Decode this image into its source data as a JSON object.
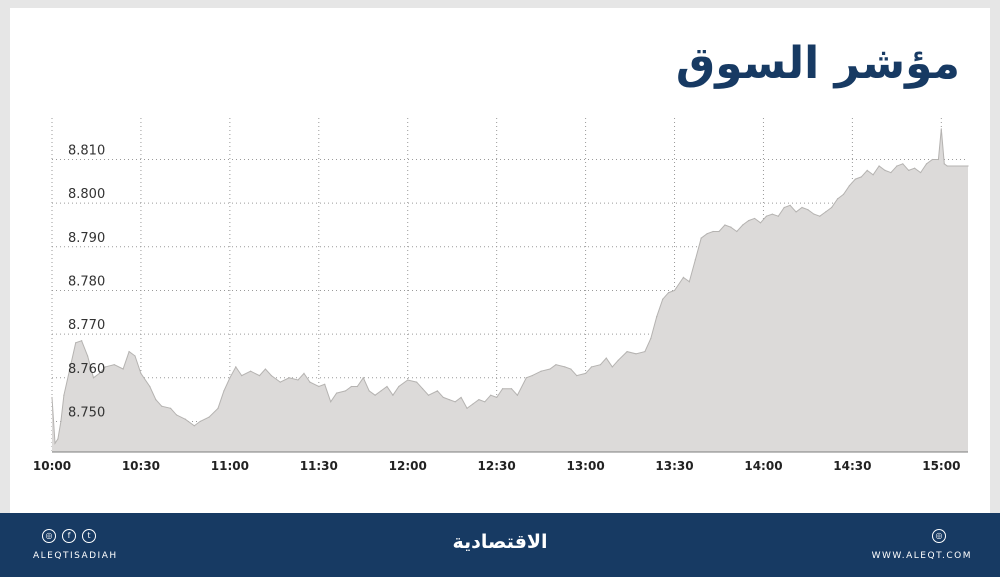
{
  "title": "مؤشر السوق",
  "chart_data": {
    "type": "area",
    "ylim": [
      8.743,
      8.8195
    ],
    "xlim": [
      "10:00",
      "15:09"
    ],
    "x_ticks": [
      "10:00",
      "10:30",
      "11:00",
      "11:30",
      "12:00",
      "12:30",
      "13:00",
      "13:30",
      "14:00",
      "14:30",
      "15:00"
    ],
    "y_ticks": [
      "8.750",
      "8.760",
      "8.770",
      "8.780",
      "8.790",
      "8.800",
      "8.810"
    ],
    "grid": true,
    "series": [
      {
        "color": "#dcdad9",
        "line_color": "#b5b3b1",
        "points": [
          [
            "10:00",
            8.7555
          ],
          [
            "10:01",
            8.745
          ],
          [
            "10:02",
            8.746
          ],
          [
            "10:03",
            8.75
          ],
          [
            "10:04",
            8.756
          ],
          [
            "10:06",
            8.762
          ],
          [
            "10:08",
            8.768
          ],
          [
            "10:10",
            8.7685
          ],
          [
            "10:12",
            8.765
          ],
          [
            "10:14",
            8.76
          ],
          [
            "10:16",
            8.761
          ],
          [
            "10:18",
            8.7625
          ],
          [
            "10:21",
            8.763
          ],
          [
            "10:24",
            8.762
          ],
          [
            "10:26",
            8.766
          ],
          [
            "10:28",
            8.765
          ],
          [
            "10:30",
            8.761
          ],
          [
            "10:33",
            8.758
          ],
          [
            "10:35",
            8.755
          ],
          [
            "10:37",
            8.7535
          ],
          [
            "10:40",
            8.753
          ],
          [
            "10:42",
            8.7515
          ],
          [
            "10:45",
            8.7505
          ],
          [
            "10:48",
            8.749
          ],
          [
            "10:50",
            8.75
          ],
          [
            "10:53",
            8.751
          ],
          [
            "10:56",
            8.753
          ],
          [
            "10:58",
            8.757
          ],
          [
            "11:00",
            8.76
          ],
          [
            "11:02",
            8.7625
          ],
          [
            "11:04",
            8.7605
          ],
          [
            "11:07",
            8.7615
          ],
          [
            "11:10",
            8.7605
          ],
          [
            "11:12",
            8.762
          ],
          [
            "11:14",
            8.7605
          ],
          [
            "11:17",
            8.759
          ],
          [
            "11:20",
            8.76
          ],
          [
            "11:23",
            8.7595
          ],
          [
            "11:25",
            8.761
          ],
          [
            "11:27",
            8.759
          ],
          [
            "11:30",
            8.758
          ],
          [
            "11:32",
            8.7585
          ],
          [
            "11:34",
            8.7545
          ],
          [
            "11:36",
            8.7565
          ],
          [
            "11:39",
            8.757
          ],
          [
            "11:41",
            8.758
          ],
          [
            "11:43",
            8.758
          ],
          [
            "11:45",
            8.76
          ],
          [
            "11:47",
            8.757
          ],
          [
            "11:49",
            8.756
          ],
          [
            "11:51",
            8.757
          ],
          [
            "11:53",
            8.758
          ],
          [
            "11:55",
            8.756
          ],
          [
            "11:57",
            8.758
          ],
          [
            "12:00",
            8.7595
          ],
          [
            "12:03",
            8.759
          ],
          [
            "12:05",
            8.7575
          ],
          [
            "12:07",
            8.756
          ],
          [
            "12:10",
            8.757
          ],
          [
            "12:12",
            8.7555
          ],
          [
            "12:14",
            8.755
          ],
          [
            "12:16",
            8.7545
          ],
          [
            "12:18",
            8.7555
          ],
          [
            "12:20",
            8.753
          ],
          [
            "12:22",
            8.754
          ],
          [
            "12:24",
            8.755
          ],
          [
            "12:26",
            8.7545
          ],
          [
            "12:28",
            8.756
          ],
          [
            "12:30",
            8.7555
          ],
          [
            "12:32",
            8.7575
          ],
          [
            "12:35",
            8.7575
          ],
          [
            "12:37",
            8.756
          ],
          [
            "12:40",
            8.76
          ],
          [
            "12:42",
            8.7605
          ],
          [
            "12:45",
            8.7615
          ],
          [
            "12:48",
            8.762
          ],
          [
            "12:50",
            8.763
          ],
          [
            "12:53",
            8.7625
          ],
          [
            "12:55",
            8.762
          ],
          [
            "12:57",
            8.7605
          ],
          [
            "13:00",
            8.761
          ],
          [
            "13:02",
            8.7625
          ],
          [
            "13:05",
            8.763
          ],
          [
            "13:07",
            8.7645
          ],
          [
            "13:09",
            8.7625
          ],
          [
            "13:11",
            8.764
          ],
          [
            "13:14",
            8.766
          ],
          [
            "13:17",
            8.7655
          ],
          [
            "13:20",
            8.766
          ],
          [
            "13:22",
            8.769
          ],
          [
            "13:24",
            8.774
          ],
          [
            "13:26",
            8.778
          ],
          [
            "13:28",
            8.7795
          ],
          [
            "13:30",
            8.78
          ],
          [
            "13:33",
            8.783
          ],
          [
            "13:35",
            8.782
          ],
          [
            "13:37",
            8.787
          ],
          [
            "13:39",
            8.792
          ],
          [
            "13:41",
            8.793
          ],
          [
            "13:43",
            8.7935
          ],
          [
            "13:45",
            8.7935
          ],
          [
            "13:47",
            8.795
          ],
          [
            "13:49",
            8.7945
          ],
          [
            "13:51",
            8.7935
          ],
          [
            "13:53",
            8.795
          ],
          [
            "13:55",
            8.796
          ],
          [
            "13:57",
            8.7965
          ],
          [
            "13:59",
            8.7955
          ],
          [
            "14:01",
            8.797
          ],
          [
            "14:03",
            8.7975
          ],
          [
            "14:05",
            8.797
          ],
          [
            "14:07",
            8.799
          ],
          [
            "14:09",
            8.7995
          ],
          [
            "14:11",
            8.798
          ],
          [
            "14:13",
            8.799
          ],
          [
            "14:15",
            8.7985
          ],
          [
            "14:17",
            8.7975
          ],
          [
            "14:19",
            8.797
          ],
          [
            "14:21",
            8.798
          ],
          [
            "14:23",
            8.799
          ],
          [
            "14:25",
            8.801
          ],
          [
            "14:27",
            8.802
          ],
          [
            "14:29",
            8.804
          ],
          [
            "14:31",
            8.8055
          ],
          [
            "14:33",
            8.806
          ],
          [
            "14:35",
            8.8075
          ],
          [
            "14:37",
            8.8065
          ],
          [
            "14:39",
            8.8085
          ],
          [
            "14:41",
            8.8075
          ],
          [
            "14:43",
            8.807
          ],
          [
            "14:45",
            8.8085
          ],
          [
            "14:47",
            8.809
          ],
          [
            "14:49",
            8.8075
          ],
          [
            "14:51",
            8.808
          ],
          [
            "14:53",
            8.807
          ],
          [
            "14:55",
            8.809
          ],
          [
            "14:57",
            8.81
          ],
          [
            "14:59",
            8.81
          ],
          [
            "15:00",
            8.817
          ],
          [
            "15:01",
            8.809
          ],
          [
            "15:02",
            8.8085
          ],
          [
            "15:09",
            8.8085
          ]
        ]
      }
    ]
  },
  "footer": {
    "social_icons": [
      "instagram-icon",
      "facebook-icon",
      "twitter-icon"
    ],
    "social_glyphs": [
      "◎",
      "f",
      "t"
    ],
    "handle": "ALEQTISADIAH",
    "logo": "الاقتصادية",
    "website_icon_glyph": "◎",
    "website": "WWW.ALEQT.COM"
  }
}
